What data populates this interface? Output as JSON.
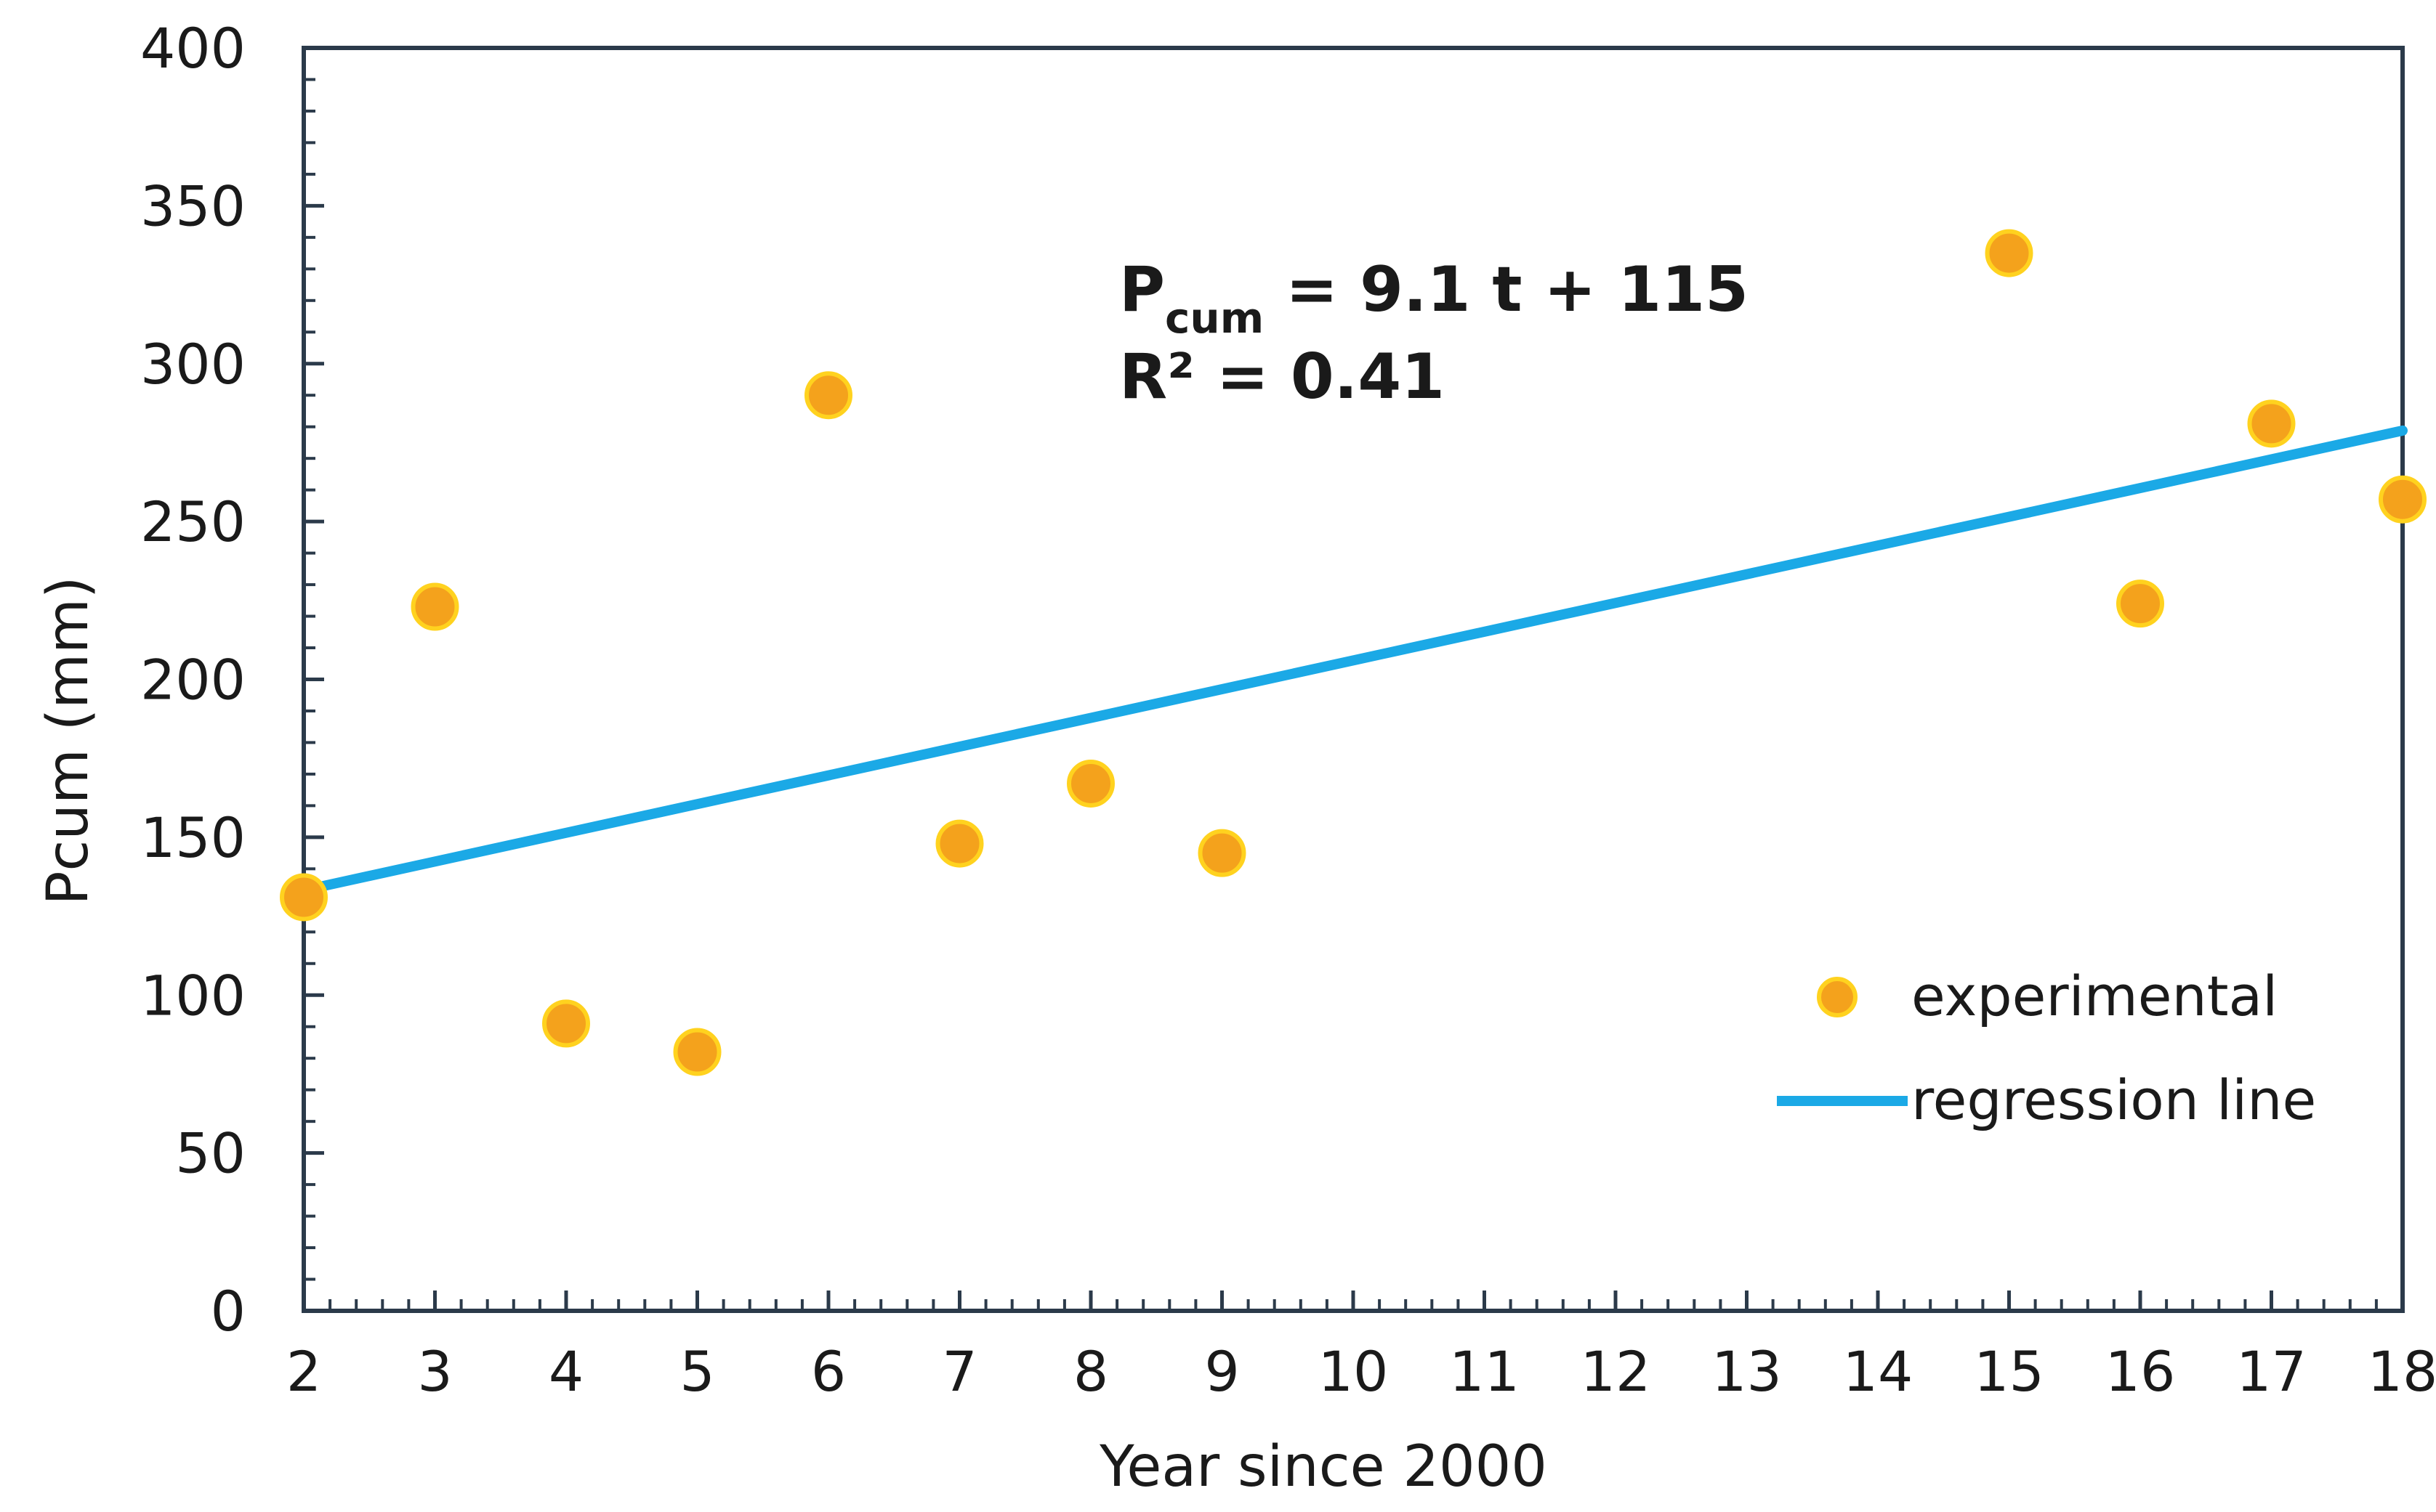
{
  "chart_data": {
    "type": "scatter",
    "title": "",
    "xlabel": "Year since 2000",
    "ylabel": "Pcum (mm)",
    "xlim": [
      2,
      18
    ],
    "ylim": [
      0,
      400
    ],
    "x_ticks": [
      2,
      3,
      4,
      5,
      6,
      7,
      8,
      9,
      10,
      11,
      12,
      13,
      14,
      15,
      16,
      17,
      18
    ],
    "y_ticks": [
      0,
      50,
      100,
      150,
      200,
      250,
      300,
      350,
      400
    ],
    "series": [
      {
        "name": "experimental",
        "kind": "scatter",
        "color": "#f4a21c",
        "edge_color": "#ffd21f",
        "points": [
          {
            "x": 2,
            "y": 131
          },
          {
            "x": 3,
            "y": 223
          },
          {
            "x": 4,
            "y": 91
          },
          {
            "x": 5,
            "y": 82
          },
          {
            "x": 6,
            "y": 290
          },
          {
            "x": 7,
            "y": 148
          },
          {
            "x": 8,
            "y": 167
          },
          {
            "x": 9,
            "y": 145
          },
          {
            "x": 15,
            "y": 335
          },
          {
            "x": 16,
            "y": 224
          },
          {
            "x": 17,
            "y": 281
          },
          {
            "x": 18,
            "y": 257
          }
        ]
      },
      {
        "name": "regression line",
        "kind": "line",
        "color": "#1ba9e6",
        "slope": 9.1,
        "intercept": 115,
        "x_range": [
          2,
          18
        ]
      }
    ],
    "annotation": {
      "var": "P",
      "sub": "cum",
      "rhs": " = 9.1 t + 115",
      "r2": "R² = 0.41"
    },
    "legend": {
      "position": "bottom-right",
      "items": [
        "experimental",
        "regression line"
      ]
    },
    "grid": false
  }
}
